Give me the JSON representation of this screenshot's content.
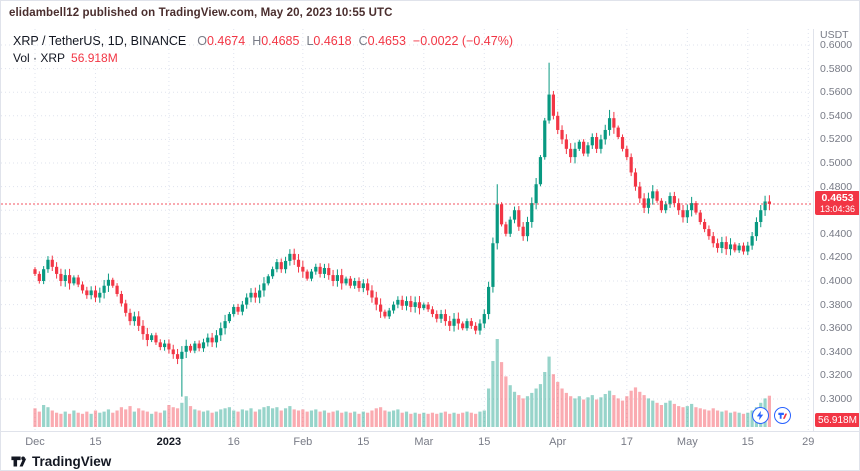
{
  "attribution": {
    "text": "elidambell12 published on TradingView.com, May 20, 2023 10:55 UTC"
  },
  "legend": {
    "symbol_title": "XRP / TetherUS, 1D, BINANCE",
    "ohlc": [
      {
        "label": "O",
        "value": "0.4674"
      },
      {
        "label": "H",
        "value": "0.4685"
      },
      {
        "label": "L",
        "value": "0.4618"
      },
      {
        "label": "C",
        "value": "0.4653"
      }
    ],
    "change": "−0.0022 (−0.47%)",
    "volume_row": {
      "label": "Vol · XRP",
      "value": "56.918M"
    }
  },
  "price_axis": {
    "currency": "USDT",
    "last_price_badge": {
      "price": "0.4653",
      "countdown": "13:04:36"
    },
    "volume_badge": "56.918M"
  },
  "time_axis": {
    "labels": [
      {
        "text": "Dec",
        "idx": 0,
        "bold": false
      },
      {
        "text": "15",
        "idx": 14,
        "bold": false
      },
      {
        "text": "2023",
        "idx": 31,
        "bold": true
      },
      {
        "text": "16",
        "idx": 46,
        "bold": false
      },
      {
        "text": "Feb",
        "idx": 62,
        "bold": false
      },
      {
        "text": "15",
        "idx": 76,
        "bold": false
      },
      {
        "text": "Mar",
        "idx": 90,
        "bold": false
      },
      {
        "text": "15",
        "idx": 104,
        "bold": false
      },
      {
        "text": "Apr",
        "idx": 121,
        "bold": false
      },
      {
        "text": "17",
        "idx": 137,
        "bold": false
      },
      {
        "text": "May",
        "idx": 151,
        "bold": false
      },
      {
        "text": "15",
        "idx": 165,
        "bold": false
      },
      {
        "text": "29",
        "idx": 179,
        "bold": false
      }
    ]
  },
  "footer": {
    "brand": "TradingView"
  },
  "colors": {
    "up": "#089981",
    "down": "#f23645",
    "accent_red": "#f23645",
    "axis_text": "#787b86",
    "grid": "#dfe3ee",
    "badge_blue": "#2962ff"
  },
  "chart_data": {
    "type": "candlestick",
    "title": "XRP / TetherUS, 1D, BINANCE",
    "pair": "XRP/USDT",
    "interval": "1D",
    "exchange": "BINANCE",
    "last": {
      "open": 0.4674,
      "high": 0.4685,
      "low": 0.4618,
      "close": 0.4653,
      "change": -0.0022,
      "change_pct": -0.47,
      "volume": "56.918M"
    },
    "ylim": [
      0.3,
      0.6
    ],
    "price_ticks": [
      0.6,
      0.58,
      0.56,
      0.54,
      0.52,
      0.5,
      0.48,
      0.46,
      0.44,
      0.42,
      0.4,
      0.38,
      0.36,
      0.34,
      0.32,
      0.3
    ],
    "current_price": 0.4653,
    "first_open": 0.41,
    "closes": [
      0.406,
      0.4,
      0.41,
      0.418,
      0.412,
      0.406,
      0.4,
      0.405,
      0.398,
      0.403,
      0.397,
      0.392,
      0.388,
      0.392,
      0.386,
      0.39,
      0.396,
      0.401,
      0.396,
      0.389,
      0.381,
      0.373,
      0.366,
      0.37,
      0.362,
      0.355,
      0.35,
      0.354,
      0.348,
      0.344,
      0.347,
      0.342,
      0.338,
      0.334,
      0.34,
      0.345,
      0.341,
      0.347,
      0.343,
      0.348,
      0.352,
      0.348,
      0.354,
      0.36,
      0.366,
      0.372,
      0.378,
      0.374,
      0.38,
      0.386,
      0.39,
      0.386,
      0.392,
      0.398,
      0.404,
      0.41,
      0.416,
      0.41,
      0.417,
      0.423,
      0.418,
      0.412,
      0.408,
      0.402,
      0.408,
      0.412,
      0.406,
      0.411,
      0.405,
      0.4,
      0.405,
      0.398,
      0.402,
      0.396,
      0.4,
      0.394,
      0.398,
      0.392,
      0.386,
      0.38,
      0.374,
      0.37,
      0.375,
      0.38,
      0.384,
      0.379,
      0.383,
      0.378,
      0.382,
      0.377,
      0.38,
      0.376,
      0.372,
      0.368,
      0.372,
      0.366,
      0.362,
      0.368,
      0.364,
      0.36,
      0.366,
      0.362,
      0.358,
      0.364,
      0.372,
      0.395,
      0.432,
      0.465,
      0.448,
      0.44,
      0.452,
      0.46,
      0.446,
      0.438,
      0.45,
      0.466,
      0.482,
      0.505,
      0.536,
      0.558,
      0.54,
      0.528,
      0.52,
      0.512,
      0.505,
      0.512,
      0.518,
      0.508,
      0.515,
      0.522,
      0.512,
      0.52,
      0.528,
      0.538,
      0.53,
      0.522,
      0.512,
      0.505,
      0.492,
      0.48,
      0.47,
      0.462,
      0.47,
      0.476,
      0.468,
      0.46,
      0.465,
      0.472,
      0.466,
      0.46,
      0.454,
      0.46,
      0.466,
      0.458,
      0.45,
      0.444,
      0.438,
      0.432,
      0.428,
      0.433,
      0.427,
      0.431,
      0.426,
      0.43,
      0.425,
      0.43,
      0.438,
      0.45,
      0.46,
      0.4674,
      0.4653
    ],
    "volumes_m": [
      34,
      28,
      40,
      36,
      30,
      26,
      24,
      28,
      24,
      30,
      26,
      24,
      28,
      24,
      30,
      26,
      28,
      32,
      26,
      30,
      36,
      32,
      38,
      28,
      34,
      30,
      28,
      24,
      28,
      26,
      30,
      40,
      36,
      34,
      44,
      56,
      38,
      32,
      30,
      28,
      30,
      26,
      28,
      32,
      34,
      36,
      30,
      28,
      32,
      30,
      34,
      28,
      32,
      36,
      38,
      34,
      36,
      30,
      34,
      38,
      32,
      30,
      32,
      28,
      30,
      32,
      28,
      30,
      26,
      28,
      30,
      26,
      28,
      26,
      28,
      24,
      28,
      26,
      30,
      34,
      36,
      30,
      28,
      30,
      32,
      26,
      28,
      24,
      26,
      24,
      26,
      24,
      26,
      24,
      26,
      28,
      24,
      26,
      24,
      26,
      28,
      26,
      24,
      28,
      30,
      70,
      120,
      160,
      118,
      92,
      76,
      64,
      58,
      52,
      56,
      62,
      70,
      78,
      100,
      128,
      96,
      82,
      70,
      62,
      56,
      52,
      56,
      50,
      54,
      58,
      50,
      54,
      60,
      66,
      58,
      52,
      48,
      56,
      66,
      72,
      64,
      58,
      52,
      48,
      44,
      40,
      44,
      48,
      42,
      38,
      36,
      38,
      42,
      36,
      34,
      32,
      30,
      34,
      30,
      28,
      30,
      26,
      28,
      26,
      24,
      26,
      30,
      36,
      44,
      52,
      56.918
    ],
    "high_overrides": {
      "107": 0.482,
      "119": 0.585,
      "133": 0.545,
      "169": 0.47,
      "170": 0.4685
    },
    "low_overrides": {
      "34": 0.302,
      "170": 0.4618
    }
  }
}
